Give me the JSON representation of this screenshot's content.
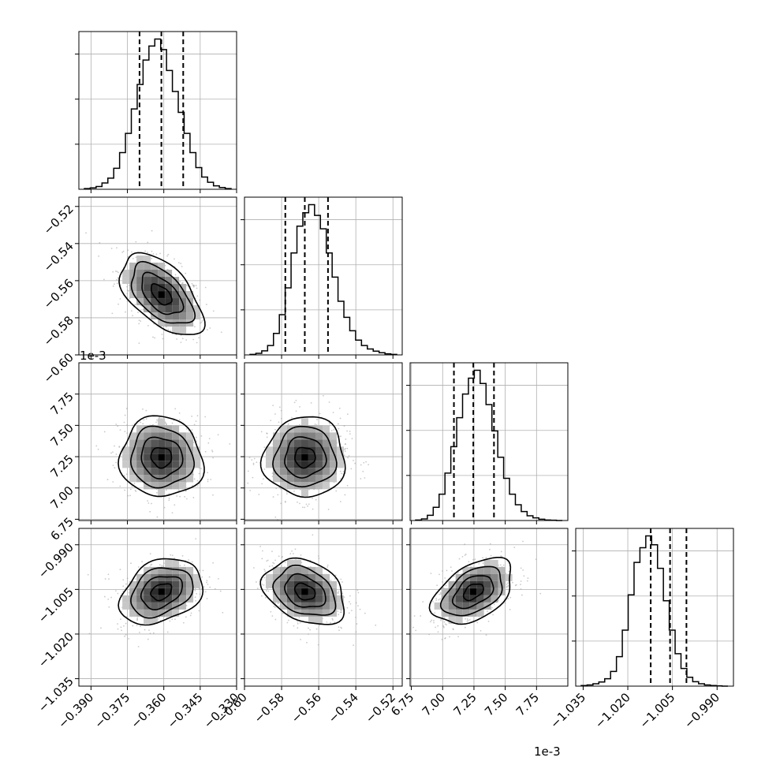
{
  "chart_data": {
    "type": "corner",
    "parameters": 4,
    "offset_labels": [
      "1e-3",
      "1e-3"
    ],
    "quantiles": [
      0.16,
      0.5,
      0.84
    ],
    "grid": true,
    "axes": [
      {
        "range": [
          -0.395,
          -0.33
        ],
        "ticks": [
          -0.39,
          -0.375,
          -0.36,
          -0.345,
          -0.33
        ],
        "tick_labels": [
          "−0.390",
          "−0.375",
          "−0.360",
          "−0.345",
          "−0.330"
        ],
        "mean": -0.361,
        "q16": -0.37,
        "q50": -0.361,
        "q84": -0.352
      },
      {
        "range": [
          -0.6,
          -0.515
        ],
        "ticks": [
          -0.6,
          -0.58,
          -0.56,
          -0.54,
          -0.52
        ],
        "tick_labels": [
          "−0.60",
          "−0.58",
          "−0.56",
          "−0.54",
          "−0.52"
        ],
        "mean": -0.5675,
        "q16": -0.578,
        "q50": -0.5675,
        "q84": -0.555
      },
      {
        "range": [
          6.74,
          8.0
        ],
        "ticks": [
          6.75,
          7.0,
          7.25,
          7.5,
          7.75
        ],
        "tick_labels": [
          "6.75",
          "7.00",
          "7.25",
          "7.50",
          "7.75"
        ],
        "mean": 7.245,
        "q16": 7.09,
        "q50": 7.245,
        "q84": 7.41
      },
      {
        "range": [
          -1.0375,
          -0.9845
        ],
        "ticks": [
          -1.035,
          -1.02,
          -1.005,
          -0.99
        ],
        "tick_labels": [
          "−1.035",
          "−1.020",
          "−1.005",
          "−0.990"
        ],
        "mean": -1.0058,
        "q16": -1.0123,
        "q50": -1.0058,
        "q84": -1.0003
      }
    ],
    "histograms": [
      {
        "parameter": 0,
        "counts": [
          2,
          4,
          8,
          18,
          32,
          60,
          105,
          160,
          230,
          300,
          370,
          410,
          430,
          400,
          340,
          280,
          220,
          160,
          105,
          62,
          35,
          20,
          10,
          5,
          2
        ]
      },
      {
        "parameter": 1,
        "counts": [
          2,
          6,
          15,
          35,
          80,
          150,
          250,
          380,
          480,
          530,
          560,
          520,
          470,
          380,
          290,
          200,
          140,
          90,
          55,
          35,
          22,
          14,
          8,
          4,
          2
        ]
      },
      {
        "parameter": 2,
        "counts": [
          2,
          6,
          20,
          50,
          100,
          180,
          280,
          390,
          480,
          540,
          570,
          520,
          440,
          340,
          240,
          160,
          100,
          60,
          34,
          18,
          10,
          5,
          2,
          1,
          0
        ]
      },
      {
        "parameter": 3,
        "counts": [
          2,
          4,
          8,
          14,
          25,
          50,
          100,
          190,
          310,
          420,
          470,
          510,
          480,
          400,
          290,
          190,
          110,
          60,
          30,
          15,
          8,
          4,
          2,
          1,
          0
        ]
      }
    ],
    "pairs": [
      {
        "x": 0,
        "y": 1,
        "sx": 0.0085,
        "sy": 0.011,
        "rho": -0.55
      },
      {
        "x": 0,
        "y": 2,
        "sx": 0.0085,
        "sy": 0.16,
        "rho": -0.05
      },
      {
        "x": 1,
        "y": 2,
        "sx": 0.011,
        "sy": 0.16,
        "rho": 0.02
      },
      {
        "x": 0,
        "y": 3,
        "sx": 0.0085,
        "sy": 0.0055,
        "rho": 0.3
      },
      {
        "x": 1,
        "y": 3,
        "sx": 0.011,
        "sy": 0.0055,
        "rho": -0.3
      },
      {
        "x": 2,
        "y": 3,
        "sx": 0.16,
        "sy": 0.0055,
        "rho": 0.45
      }
    ]
  }
}
